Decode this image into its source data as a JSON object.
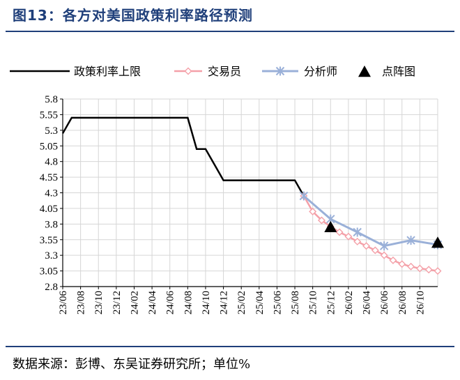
{
  "figure": {
    "title": "图13：各方对美国政策利率路径预测",
    "source": "数据来源：彭博、东吴证券研究所；单位%"
  },
  "colors": {
    "policy": "#000000",
    "market": "#f4a0a8",
    "analyst": "#9ab0d8",
    "dotplot": "#000000",
    "grid": "#d6d6d6",
    "title": "#1f3f7a"
  },
  "chart_data": {
    "type": "line",
    "title": "",
    "xlabel": "",
    "ylabel": "",
    "ylim": [
      2.8,
      5.8
    ],
    "ytick_labels": [
      "2.8",
      "3.05",
      "3.3",
      "3.55",
      "3.8",
      "4.05",
      "4.3",
      "4.55",
      "4.8",
      "5.05",
      "5.3",
      "5.55",
      "5.8"
    ],
    "x_tick_labels": [
      "23/06",
      "23/08",
      "23/10",
      "23/12",
      "24/02",
      "24/04",
      "24/06",
      "24/08",
      "24/10",
      "24/12",
      "25/02",
      "25/04",
      "25/06",
      "25/08",
      "25/10",
      "25/12",
      "26/02",
      "26/04",
      "26/06",
      "26/08",
      "26/10"
    ],
    "grid": true,
    "legend_position": "top",
    "series": [
      {
        "name": "政策利率上限",
        "marker": "none",
        "points": [
          [
            "2023-06",
            5.25
          ],
          [
            "2023-07",
            5.5
          ],
          [
            "2023-08",
            5.5
          ],
          [
            "2024-08",
            5.5
          ],
          [
            "2024-09",
            5.0
          ],
          [
            "2024-10",
            5.0
          ],
          [
            "2024-11",
            4.75
          ],
          [
            "2024-12",
            4.5
          ],
          [
            "2025-01",
            4.5
          ],
          [
            "2025-08",
            4.5
          ],
          [
            "2025-09",
            4.25
          ]
        ]
      },
      {
        "name": "交易员",
        "marker": "diamond",
        "points": [
          [
            "2025-09",
            4.25
          ],
          [
            "2025-10",
            4.0
          ],
          [
            "2025-11",
            3.86
          ],
          [
            "2025-12",
            3.76
          ],
          [
            "2026-01",
            3.67
          ],
          [
            "2026-02",
            3.6
          ],
          [
            "2026-03",
            3.52
          ],
          [
            "2026-04",
            3.45
          ],
          [
            "2026-05",
            3.38
          ],
          [
            "2026-06",
            3.3
          ],
          [
            "2026-07",
            3.22
          ],
          [
            "2026-08",
            3.16
          ],
          [
            "2026-09",
            3.12
          ],
          [
            "2026-10",
            3.09
          ],
          [
            "2026-11",
            3.07
          ],
          [
            "2026-12",
            3.05
          ]
        ]
      },
      {
        "name": "分析师",
        "marker": "star",
        "points": [
          [
            "2025-09",
            4.25
          ],
          [
            "2025-12",
            3.88
          ],
          [
            "2026-03",
            3.67
          ],
          [
            "2026-06",
            3.45
          ],
          [
            "2026-09",
            3.54
          ],
          [
            "2026-12",
            3.47
          ]
        ]
      },
      {
        "name": "点阵图",
        "marker": "triangle",
        "points": [
          [
            "2025-12",
            3.75
          ],
          [
            "2026-12",
            3.5
          ]
        ]
      }
    ]
  }
}
